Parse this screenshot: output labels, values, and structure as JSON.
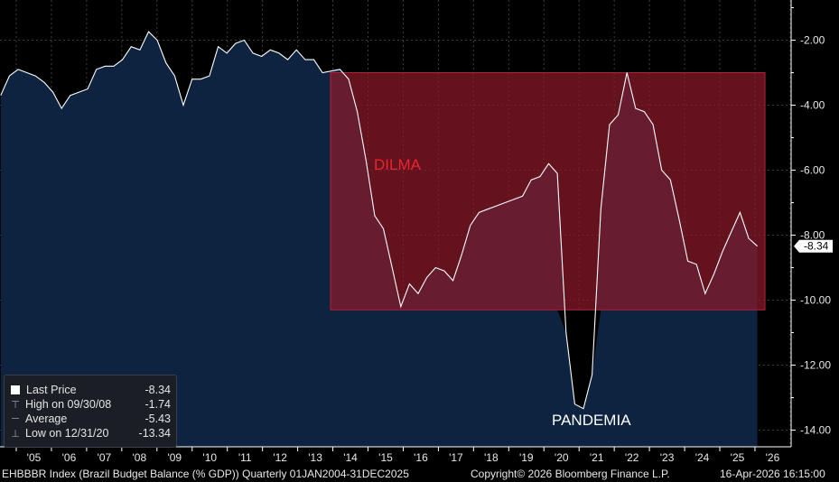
{
  "chart_data": {
    "type": "area",
    "ticker": "EHBBBR",
    "y_axis": {
      "ticks": [
        "2.00",
        "4.00",
        "6.00",
        "8.00",
        "10.00",
        "12.00",
        "14.00"
      ],
      "range": [
        -0.2,
        -14.9
      ],
      "side": "right"
    },
    "x_axis": {
      "ticks": [
        "'05",
        "'06",
        "'07",
        "'08",
        "'09",
        "'10",
        "'11",
        "'12",
        "'13",
        "'14",
        "'15",
        "'16",
        "'17",
        "'18",
        "'19",
        "'20",
        "'21",
        "'22",
        "'23",
        "'24",
        "'25",
        "'26"
      ]
    },
    "series": [
      {
        "values": [
          -3.7,
          -3.1,
          -2.9,
          -3.0,
          -3.1,
          -3.3,
          -3.6,
          -4.1,
          -3.7,
          -3.6,
          -3.5,
          -2.9,
          -2.8,
          -2.8,
          -2.6,
          -2.2,
          -2.3,
          -1.74,
          -2.0,
          -2.7,
          -3.1,
          -4.0,
          -3.2,
          -3.2,
          -3.1,
          -2.2,
          -2.4,
          -2.1,
          -2.0,
          -2.4,
          -2.5,
          -2.3,
          -2.4,
          -2.6,
          -2.3,
          -2.6,
          -2.6,
          -3.0,
          -2.95,
          -2.9,
          -3.2,
          -4.2,
          -5.7,
          -7.4,
          -7.8,
          -9.0,
          -10.2,
          -9.5,
          -9.8,
          -9.3,
          -9.0,
          -9.1,
          -9.4,
          -8.6,
          -7.7,
          -7.3,
          -7.2,
          -7.1,
          -7.0,
          -6.9,
          -6.8,
          -6.3,
          -6.2,
          -5.8,
          -6.1,
          -11.0,
          -13.2,
          -13.34,
          -12.3,
          -7.2,
          -4.6,
          -4.3,
          -3.0,
          -4.1,
          -4.2,
          -4.6,
          -6.0,
          -6.3,
          -7.5,
          -8.8,
          -8.9,
          -9.8,
          -9.2,
          -8.5,
          -7.9,
          -7.3,
          -8.1,
          -8.34
        ]
      }
    ],
    "last_value_label": "-8.34",
    "annotations": [
      {
        "text": "DILMA",
        "color": "#e8262e",
        "x_range": [
          "2013-Q1",
          "2025-Q4"
        ],
        "y_range": [
          -3.0,
          -10.3
        ],
        "fill": "#8b1a2a"
      },
      {
        "text": "PANDEMIA",
        "color": "#ffffff"
      }
    ],
    "colors": {
      "area": "#0d2340",
      "line": "#ffffff",
      "dilma_box": "#b3203a",
      "background": "#000000"
    }
  },
  "legend": {
    "rows": [
      {
        "label": "Last Price",
        "value": "-8.34"
      },
      {
        "label": "High on 09/30/08",
        "value": "-1.74"
      },
      {
        "label": "Average",
        "value": "-5.43"
      },
      {
        "label": "Low on 12/31/20",
        "value": "-13.34"
      }
    ]
  },
  "footer": {
    "index_text": "EHBBBR Index (Brazil Budget Balance (% GDP)) Quarterly 01JAN2004-31DEC2025",
    "copyright": "Copyright© 2026 Bloomberg Finance L.P.",
    "timestamp": "16-Apr-2026 16:15:00"
  }
}
